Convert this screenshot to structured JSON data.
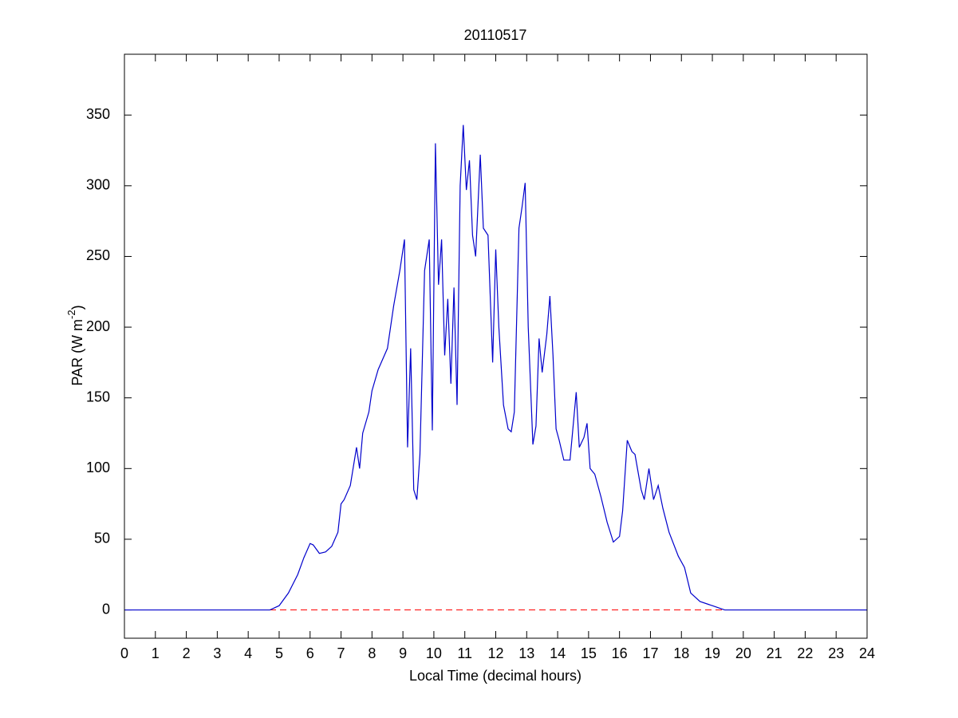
{
  "chart_data": {
    "type": "line",
    "title": "20110517",
    "xlabel": "Local Time (decimal hours)",
    "ylabel_parts": [
      "PAR (W m",
      "-2",
      ")"
    ],
    "xlim": [
      0,
      24
    ],
    "xticks": [
      0,
      1,
      2,
      3,
      4,
      5,
      6,
      7,
      8,
      9,
      10,
      11,
      12,
      13,
      14,
      15,
      16,
      17,
      18,
      19,
      20,
      21,
      22,
      23,
      24
    ],
    "ylim": [
      -20,
      393
    ],
    "yticks": [
      0,
      50,
      100,
      150,
      200,
      250,
      300,
      350
    ],
    "reference_line": {
      "value": 0,
      "color": "#ff0000",
      "style": "dashed"
    },
    "series": [
      {
        "color": "#0000cc",
        "x": [
          0,
          4.7,
          5.0,
          5.3,
          5.6,
          5.8,
          6.0,
          6.1,
          6.3,
          6.5,
          6.7,
          6.9,
          7.0,
          7.1,
          7.3,
          7.5,
          7.6,
          7.7,
          7.9,
          8.0,
          8.2,
          8.4,
          8.5,
          8.7,
          8.9,
          9.05,
          9.15,
          9.25,
          9.35,
          9.45,
          9.55,
          9.7,
          9.85,
          9.95,
          10.05,
          10.15,
          10.25,
          10.35,
          10.45,
          10.55,
          10.65,
          10.75,
          10.85,
          10.95,
          11.05,
          11.15,
          11.25,
          11.35,
          11.5,
          11.6,
          11.75,
          11.9,
          12.0,
          12.1,
          12.25,
          12.4,
          12.5,
          12.6,
          12.75,
          12.85,
          12.95,
          13.05,
          13.2,
          13.3,
          13.4,
          13.5,
          13.65,
          13.75,
          13.85,
          13.95,
          14.05,
          14.2,
          14.4,
          14.5,
          14.6,
          14.7,
          14.85,
          14.95,
          15.05,
          15.2,
          15.4,
          15.6,
          15.8,
          16.0,
          16.1,
          16.25,
          16.4,
          16.5,
          16.7,
          16.8,
          16.95,
          17.1,
          17.25,
          17.4,
          17.6,
          17.9,
          18.1,
          18.3,
          18.6,
          19.0,
          19.4,
          24
        ],
        "values": [
          0,
          0,
          3,
          12,
          25,
          37,
          47,
          46,
          40,
          41,
          45,
          55,
          75,
          78,
          88,
          115,
          100,
          125,
          140,
          155,
          170,
          180,
          185,
          215,
          240,
          262,
          115,
          185,
          85,
          78,
          110,
          240,
          262,
          127,
          330,
          230,
          262,
          180,
          220,
          160,
          228,
          145,
          300,
          343,
          297,
          318,
          265,
          250,
          322,
          270,
          265,
          175,
          255,
          200,
          145,
          128,
          126,
          140,
          270,
          285,
          302,
          200,
          117,
          130,
          192,
          168,
          195,
          222,
          180,
          128,
          120,
          106,
          106,
          130,
          154,
          115,
          122,
          132,
          100,
          96,
          80,
          62,
          48,
          52,
          70,
          120,
          112,
          110,
          85,
          78,
          100,
          78,
          88,
          72,
          55,
          38,
          30,
          12,
          6,
          3,
          0,
          0
        ]
      }
    ]
  }
}
